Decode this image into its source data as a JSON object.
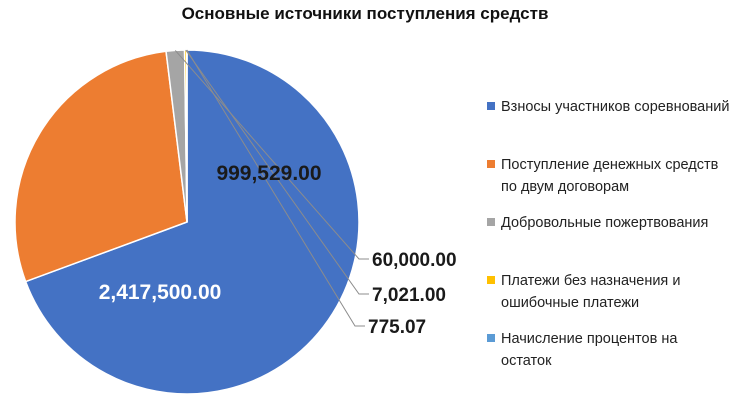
{
  "chart_data": {
    "type": "pie",
    "title": "Основные источники поступления средств",
    "categories": [
      "Взносы участников соревнований",
      "Поступление денежных средств по двум договорам",
      "Добровольные пожертвования",
      "Платежи без назначения и ошибочные платежи",
      "Начисление процентов на остаток"
    ],
    "values": [
      2417500.0,
      999529.0,
      60000.0,
      7021.0,
      775.07
    ],
    "data_labels": [
      "2,417,500.00",
      "999,529.00",
      "60,000.00",
      "7,021.00",
      "775.07"
    ],
    "colors": [
      "#4472C4",
      "#ED7D31",
      "#A5A5A5",
      "#FFC000",
      "#5B9BD5"
    ],
    "label_colors": [
      "#ffffff",
      "#1a1a1a",
      "#1a1a1a",
      "#1a1a1a",
      "#1a1a1a"
    ],
    "start_angle_deg": 0,
    "direction": "clockwise",
    "legend_position": "right"
  }
}
